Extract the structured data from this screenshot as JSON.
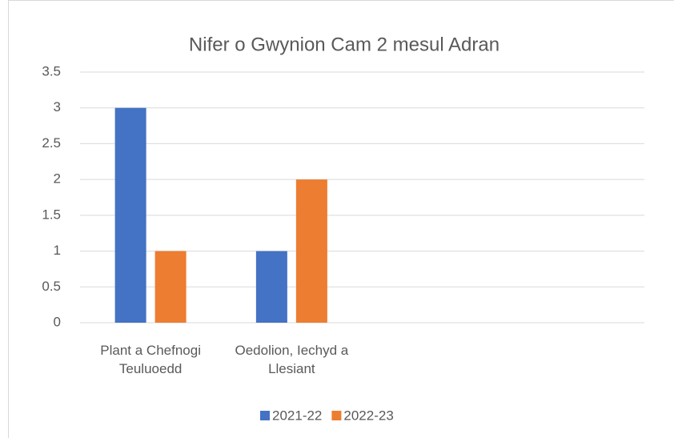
{
  "chart_data": {
    "type": "bar",
    "title": "Nifer o Gwynion Cam 2 mesul Adran",
    "categories": [
      "Plant a Chefnogi Teuluoedd",
      "Oedolion, Iechyd a Llesiant",
      null,
      null
    ],
    "series": [
      {
        "name": "2021-22",
        "color": "#4472c4",
        "values": [
          3,
          1,
          null,
          null
        ]
      },
      {
        "name": "2022-23",
        "color": "#ed7d31",
        "values": [
          1,
          2,
          null,
          null
        ]
      }
    ],
    "ylim": [
      0,
      3.5
    ],
    "yticks": [
      0,
      0.5,
      1,
      1.5,
      2,
      2.5,
      3,
      3.5
    ],
    "grid": true,
    "legend": "bottom"
  }
}
